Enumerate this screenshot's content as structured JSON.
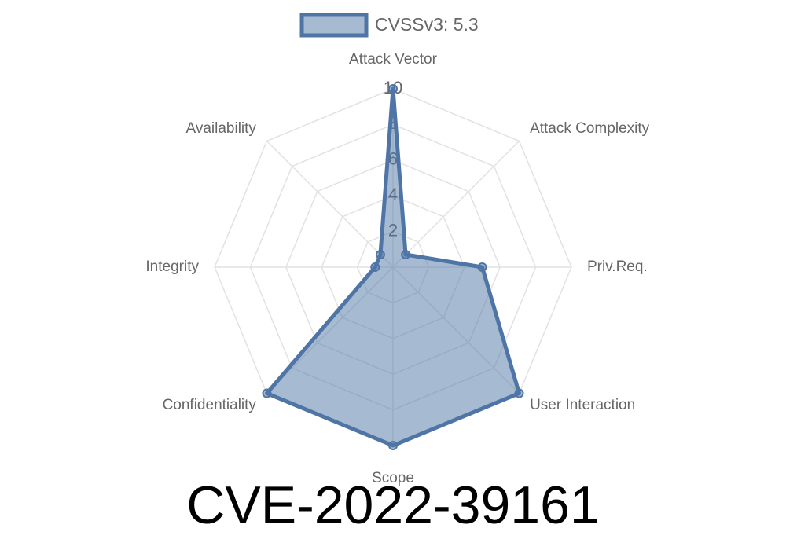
{
  "chart_data": {
    "type": "radar",
    "title": "CVE-2022-39161",
    "categories": [
      "Attack Vector",
      "Attack Complexity",
      "Priv.Req.",
      "User Interaction",
      "Scope",
      "Confidentiality",
      "Integrity",
      "Availability"
    ],
    "series": [
      {
        "name": "CVSSv3: 5.3",
        "color": "#4e75a6",
        "values": [
          10,
          1,
          5,
          10,
          10,
          10,
          1,
          1
        ]
      }
    ],
    "rlim": [
      0,
      10
    ],
    "rticks": [
      2,
      4,
      6,
      8,
      10
    ],
    "grid": true,
    "legend": "top"
  }
}
